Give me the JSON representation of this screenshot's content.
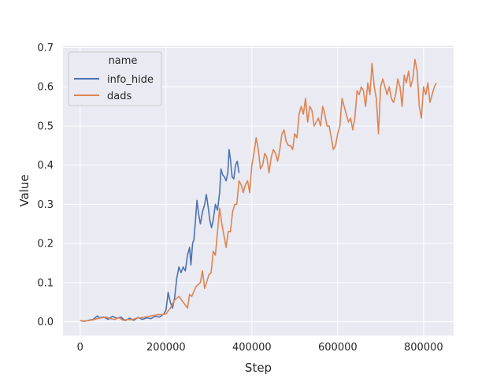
{
  "chart_data": {
    "type": "line",
    "xlabel": "Step",
    "ylabel": "Value",
    "xlim": [
      -40000,
      870000
    ],
    "ylim": [
      -0.035,
      0.705
    ],
    "x_ticks": [
      0,
      200000,
      400000,
      600000,
      800000
    ],
    "x_tick_labels": [
      "0",
      "200000",
      "400000",
      "600000",
      "800000"
    ],
    "y_ticks": [
      0.0,
      0.1,
      0.2,
      0.3,
      0.4,
      0.5,
      0.6,
      0.7
    ],
    "y_tick_labels": [
      "0.0",
      "0.1",
      "0.2",
      "0.3",
      "0.4",
      "0.5",
      "0.6",
      "0.7"
    ],
    "grid": true,
    "background": "#eaeaf2",
    "legend": {
      "title": "name",
      "placement": "top-left"
    },
    "series": [
      {
        "name": "info_hide",
        "color": "#4c72b0",
        "points": [
          [
            0,
            0.003
          ],
          [
            10000,
            0.001
          ],
          [
            20000,
            0.004
          ],
          [
            30000,
            0.006
          ],
          [
            40000,
            0.015
          ],
          [
            45000,
            0.01
          ],
          [
            55000,
            0.012
          ],
          [
            65000,
            0.006
          ],
          [
            75000,
            0.014
          ],
          [
            85000,
            0.009
          ],
          [
            95000,
            0.012
          ],
          [
            105000,
            0.003
          ],
          [
            115000,
            0.009
          ],
          [
            125000,
            0.004
          ],
          [
            135000,
            0.011
          ],
          [
            145000,
            0.006
          ],
          [
            155000,
            0.01
          ],
          [
            165000,
            0.008
          ],
          [
            175000,
            0.014
          ],
          [
            185000,
            0.012
          ],
          [
            195000,
            0.02
          ],
          [
            200000,
            0.03
          ],
          [
            205000,
            0.075
          ],
          [
            210000,
            0.05
          ],
          [
            215000,
            0.035
          ],
          [
            220000,
            0.06
          ],
          [
            225000,
            0.11
          ],
          [
            230000,
            0.14
          ],
          [
            235000,
            0.125
          ],
          [
            240000,
            0.14
          ],
          [
            245000,
            0.13
          ],
          [
            250000,
            0.17
          ],
          [
            255000,
            0.19
          ],
          [
            258000,
            0.145
          ],
          [
            262000,
            0.2
          ],
          [
            265000,
            0.21
          ],
          [
            268000,
            0.25
          ],
          [
            272000,
            0.31
          ],
          [
            276000,
            0.275
          ],
          [
            280000,
            0.25
          ],
          [
            285000,
            0.28
          ],
          [
            290000,
            0.3
          ],
          [
            294000,
            0.325
          ],
          [
            298000,
            0.295
          ],
          [
            302000,
            0.26
          ],
          [
            306000,
            0.24
          ],
          [
            310000,
            0.26
          ],
          [
            315000,
            0.3
          ],
          [
            320000,
            0.285
          ],
          [
            325000,
            0.33
          ],
          [
            328000,
            0.39
          ],
          [
            332000,
            0.375
          ],
          [
            336000,
            0.37
          ],
          [
            340000,
            0.36
          ],
          [
            344000,
            0.38
          ],
          [
            347000,
            0.44
          ],
          [
            350000,
            0.415
          ],
          [
            354000,
            0.37
          ],
          [
            358000,
            0.365
          ],
          [
            362000,
            0.4
          ],
          [
            366000,
            0.41
          ],
          [
            370000,
            0.38
          ]
        ]
      },
      {
        "name": "dads",
        "color": "#dd8452",
        "points": [
          [
            0,
            0.003
          ],
          [
            10000,
            0.002
          ],
          [
            20000,
            0.003
          ],
          [
            30000,
            0.005
          ],
          [
            40000,
            0.008
          ],
          [
            50000,
            0.01
          ],
          [
            60000,
            0.012
          ],
          [
            70000,
            0.008
          ],
          [
            80000,
            0.006
          ],
          [
            90000,
            0.01
          ],
          [
            100000,
            0.004
          ],
          [
            110000,
            0.006
          ],
          [
            120000,
            0.005
          ],
          [
            130000,
            0.009
          ],
          [
            140000,
            0.01
          ],
          [
            150000,
            0.012
          ],
          [
            160000,
            0.014
          ],
          [
            170000,
            0.016
          ],
          [
            180000,
            0.018
          ],
          [
            190000,
            0.018
          ],
          [
            200000,
            0.02
          ],
          [
            210000,
            0.035
          ],
          [
            220000,
            0.055
          ],
          [
            230000,
            0.065
          ],
          [
            240000,
            0.05
          ],
          [
            250000,
            0.035
          ],
          [
            255000,
            0.07
          ],
          [
            260000,
            0.065
          ],
          [
            270000,
            0.09
          ],
          [
            280000,
            0.1
          ],
          [
            285000,
            0.13
          ],
          [
            290000,
            0.085
          ],
          [
            300000,
            0.12
          ],
          [
            305000,
            0.125
          ],
          [
            310000,
            0.18
          ],
          [
            315000,
            0.17
          ],
          [
            320000,
            0.23
          ],
          [
            325000,
            0.29
          ],
          [
            330000,
            0.25
          ],
          [
            335000,
            0.22
          ],
          [
            340000,
            0.19
          ],
          [
            345000,
            0.23
          ],
          [
            350000,
            0.23
          ],
          [
            355000,
            0.28
          ],
          [
            360000,
            0.3
          ],
          [
            365000,
            0.3
          ],
          [
            370000,
            0.36
          ],
          [
            375000,
            0.35
          ],
          [
            380000,
            0.33
          ],
          [
            385000,
            0.35
          ],
          [
            390000,
            0.36
          ],
          [
            395000,
            0.33
          ],
          [
            400000,
            0.4
          ],
          [
            405000,
            0.43
          ],
          [
            410000,
            0.47
          ],
          [
            415000,
            0.44
          ],
          [
            420000,
            0.39
          ],
          [
            425000,
            0.4
          ],
          [
            430000,
            0.43
          ],
          [
            435000,
            0.42
          ],
          [
            440000,
            0.38
          ],
          [
            445000,
            0.42
          ],
          [
            450000,
            0.44
          ],
          [
            455000,
            0.43
          ],
          [
            460000,
            0.41
          ],
          [
            465000,
            0.44
          ],
          [
            470000,
            0.48
          ],
          [
            475000,
            0.49
          ],
          [
            480000,
            0.46
          ],
          [
            485000,
            0.45
          ],
          [
            490000,
            0.45
          ],
          [
            495000,
            0.44
          ],
          [
            500000,
            0.48
          ],
          [
            505000,
            0.47
          ],
          [
            510000,
            0.53
          ],
          [
            515000,
            0.55
          ],
          [
            520000,
            0.53
          ],
          [
            525000,
            0.57
          ],
          [
            530000,
            0.51
          ],
          [
            535000,
            0.55
          ],
          [
            540000,
            0.54
          ],
          [
            545000,
            0.5
          ],
          [
            550000,
            0.51
          ],
          [
            555000,
            0.52
          ],
          [
            560000,
            0.5
          ],
          [
            565000,
            0.55
          ],
          [
            570000,
            0.53
          ],
          [
            575000,
            0.5
          ],
          [
            580000,
            0.5
          ],
          [
            585000,
            0.47
          ],
          [
            590000,
            0.44
          ],
          [
            595000,
            0.45
          ],
          [
            600000,
            0.48
          ],
          [
            605000,
            0.5
          ],
          [
            610000,
            0.57
          ],
          [
            615000,
            0.55
          ],
          [
            620000,
            0.53
          ],
          [
            625000,
            0.51
          ],
          [
            630000,
            0.52
          ],
          [
            635000,
            0.49
          ],
          [
            640000,
            0.52
          ],
          [
            645000,
            0.59
          ],
          [
            650000,
            0.58
          ],
          [
            655000,
            0.6
          ],
          [
            660000,
            0.59
          ],
          [
            665000,
            0.55
          ],
          [
            670000,
            0.61
          ],
          [
            675000,
            0.58
          ],
          [
            680000,
            0.66
          ],
          [
            685000,
            0.6
          ],
          [
            690000,
            0.57
          ],
          [
            695000,
            0.48
          ],
          [
            700000,
            0.6
          ],
          [
            705000,
            0.62
          ],
          [
            710000,
            0.6
          ],
          [
            715000,
            0.58
          ],
          [
            720000,
            0.6
          ],
          [
            725000,
            0.57
          ],
          [
            730000,
            0.56
          ],
          [
            735000,
            0.58
          ],
          [
            740000,
            0.62
          ],
          [
            745000,
            0.6
          ],
          [
            750000,
            0.55
          ],
          [
            755000,
            0.63
          ],
          [
            760000,
            0.61
          ],
          [
            765000,
            0.64
          ],
          [
            770000,
            0.6
          ],
          [
            775000,
            0.62
          ],
          [
            780000,
            0.67
          ],
          [
            785000,
            0.64
          ],
          [
            790000,
            0.55
          ],
          [
            795000,
            0.52
          ],
          [
            800000,
            0.6
          ],
          [
            805000,
            0.58
          ],
          [
            810000,
            0.61
          ],
          [
            815000,
            0.56
          ],
          [
            820000,
            0.58
          ],
          [
            825000,
            0.6
          ],
          [
            830000,
            0.61
          ]
        ]
      }
    ]
  }
}
